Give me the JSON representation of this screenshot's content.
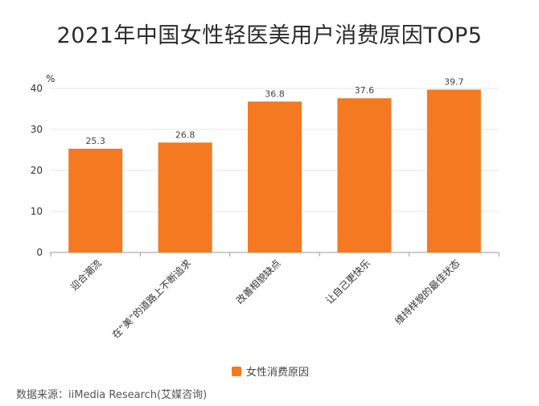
{
  "chart_data": {
    "type": "bar",
    "title": "2021年中国女性轻医美用户消费原因TOP5",
    "ylabel": "%",
    "ylim": [
      0,
      40
    ],
    "yticks": [
      0,
      10,
      20,
      30,
      40
    ],
    "categories": [
      "迎合潮流",
      "在“美”的道路上不断追求",
      "改善相貌缺点",
      "让自己更快乐",
      "维持样貌的最佳状态"
    ],
    "series": [
      {
        "name": "女性消费原因",
        "values": [
          25.3,
          26.8,
          36.8,
          37.6,
          39.7
        ]
      }
    ],
    "bar_color": "#f47920",
    "grid": true,
    "legend_position": "bottom"
  },
  "source": "数据来源：iiMedia Research(艾媒咨询)"
}
